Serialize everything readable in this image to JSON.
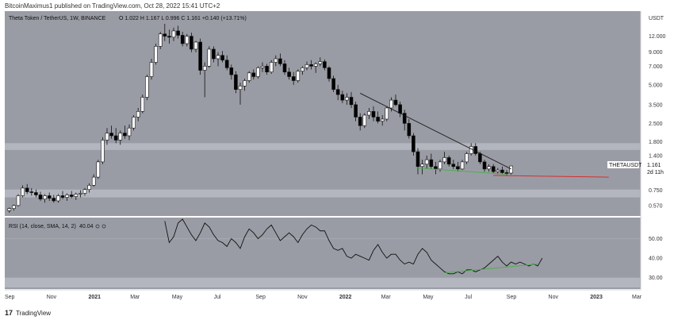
{
  "header": {
    "published_text": "BitcoinMaximus1 published on TradingView.com, Oct 28, 2022 15:41 UTC+2"
  },
  "footer": {
    "logo_glyph": "17",
    "brand": "TradingView"
  },
  "price_panel": {
    "legend_symbol": "Theta Token / TetherUS, 1W, BINANCE",
    "legend_ohlc": "O 1.022  H 1.167  L 0.996  C 1.161  +0.140 (+13.71%)",
    "unit_label": "USDT",
    "ticker_label": "THETAUSDT",
    "last_price_label": "1.161",
    "countdown_label": "2d 11h",
    "y_ticks": [
      "12.000",
      "9.000",
      "7.000",
      "5.000",
      "3.500",
      "2.500",
      "1.800",
      "1.400",
      "0.750",
      "0.570"
    ]
  },
  "rsi_panel": {
    "legend": "RSI (14, close, SMA, 14, 2)",
    "legend_value": "40.04",
    "y_ticks": [
      "50.00",
      "40.00",
      "30.00"
    ]
  },
  "x_axis": {
    "labels": [
      "Sep",
      "Nov",
      "2021",
      "Mar",
      "May",
      "Jul",
      "Sep",
      "Nov",
      "2022",
      "Mar",
      "May",
      "Jul",
      "Sep",
      "Nov",
      "2023",
      "Mar"
    ]
  },
  "chart_data": {
    "type": "candlestick",
    "title": "Theta Token / TetherUS, 1W, BINANCE",
    "y_scale": "log",
    "ylim": [
      0.5,
      15
    ],
    "support_zones": [
      [
        1.55,
        1.75
      ],
      [
        0.66,
        0.76
      ]
    ],
    "candles": [
      {
        "o": 0.52,
        "h": 0.55,
        "l": 0.5,
        "c": 0.54
      },
      {
        "o": 0.54,
        "h": 0.58,
        "l": 0.52,
        "c": 0.57
      },
      {
        "o": 0.57,
        "h": 0.7,
        "l": 0.56,
        "c": 0.68
      },
      {
        "o": 0.68,
        "h": 0.82,
        "l": 0.66,
        "c": 0.78
      },
      {
        "o": 0.78,
        "h": 0.84,
        "l": 0.7,
        "c": 0.73
      },
      {
        "o": 0.73,
        "h": 0.78,
        "l": 0.68,
        "c": 0.72
      },
      {
        "o": 0.72,
        "h": 0.76,
        "l": 0.66,
        "c": 0.69
      },
      {
        "o": 0.69,
        "h": 0.73,
        "l": 0.62,
        "c": 0.64
      },
      {
        "o": 0.64,
        "h": 0.7,
        "l": 0.6,
        "c": 0.68
      },
      {
        "o": 0.68,
        "h": 0.72,
        "l": 0.62,
        "c": 0.65
      },
      {
        "o": 0.65,
        "h": 0.69,
        "l": 0.6,
        "c": 0.62
      },
      {
        "o": 0.62,
        "h": 0.7,
        "l": 0.6,
        "c": 0.68
      },
      {
        "o": 0.68,
        "h": 0.74,
        "l": 0.64,
        "c": 0.66
      },
      {
        "o": 0.66,
        "h": 0.71,
        "l": 0.62,
        "c": 0.69
      },
      {
        "o": 0.69,
        "h": 0.74,
        "l": 0.65,
        "c": 0.67
      },
      {
        "o": 0.67,
        "h": 0.72,
        "l": 0.63,
        "c": 0.7
      },
      {
        "o": 0.7,
        "h": 0.75,
        "l": 0.66,
        "c": 0.71
      },
      {
        "o": 0.71,
        "h": 0.78,
        "l": 0.68,
        "c": 0.76
      },
      {
        "o": 0.76,
        "h": 0.85,
        "l": 0.72,
        "c": 0.82
      },
      {
        "o": 0.82,
        "h": 1.0,
        "l": 0.8,
        "c": 0.95
      },
      {
        "o": 0.95,
        "h": 1.3,
        "l": 0.92,
        "c": 1.25
      },
      {
        "o": 1.25,
        "h": 1.95,
        "l": 1.2,
        "c": 1.85
      },
      {
        "o": 1.85,
        "h": 2.3,
        "l": 1.7,
        "c": 2.1
      },
      {
        "o": 2.1,
        "h": 2.4,
        "l": 1.9,
        "c": 2.0
      },
      {
        "o": 2.0,
        "h": 2.3,
        "l": 1.75,
        "c": 1.85
      },
      {
        "o": 1.85,
        "h": 2.2,
        "l": 1.7,
        "c": 2.1
      },
      {
        "o": 2.1,
        "h": 2.4,
        "l": 1.9,
        "c": 2.0
      },
      {
        "o": 2.0,
        "h": 2.45,
        "l": 1.85,
        "c": 2.3
      },
      {
        "o": 2.3,
        "h": 2.9,
        "l": 2.2,
        "c": 2.8
      },
      {
        "o": 2.8,
        "h": 3.3,
        "l": 2.6,
        "c": 3.1
      },
      {
        "o": 3.1,
        "h": 4.2,
        "l": 3.0,
        "c": 4.0
      },
      {
        "o": 4.0,
        "h": 6.0,
        "l": 3.8,
        "c": 5.8
      },
      {
        "o": 5.8,
        "h": 8.0,
        "l": 5.5,
        "c": 7.5
      },
      {
        "o": 7.5,
        "h": 10.5,
        "l": 7.2,
        "c": 10.0
      },
      {
        "o": 10.0,
        "h": 13.0,
        "l": 9.5,
        "c": 12.5
      },
      {
        "o": 12.5,
        "h": 15.0,
        "l": 11.0,
        "c": 12.0
      },
      {
        "o": 12.0,
        "h": 13.5,
        "l": 10.5,
        "c": 11.8
      },
      {
        "o": 11.8,
        "h": 14.0,
        "l": 11.0,
        "c": 13.2
      },
      {
        "o": 13.2,
        "h": 14.5,
        "l": 11.5,
        "c": 12.2
      },
      {
        "o": 12.2,
        "h": 13.0,
        "l": 10.0,
        "c": 10.5
      },
      {
        "o": 10.5,
        "h": 12.5,
        "l": 10.0,
        "c": 12.0
      },
      {
        "o": 12.0,
        "h": 12.8,
        "l": 9.0,
        "c": 9.5
      },
      {
        "o": 9.5,
        "h": 11.0,
        "l": 9.0,
        "c": 10.8
      },
      {
        "o": 10.8,
        "h": 11.5,
        "l": 6.0,
        "c": 6.5
      },
      {
        "o": 6.5,
        "h": 7.5,
        "l": 4.0,
        "c": 7.0
      },
      {
        "o": 7.0,
        "h": 10.0,
        "l": 6.8,
        "c": 9.5
      },
      {
        "o": 9.5,
        "h": 10.0,
        "l": 7.5,
        "c": 8.0
      },
      {
        "o": 8.0,
        "h": 9.0,
        "l": 7.0,
        "c": 8.5
      },
      {
        "o": 8.5,
        "h": 9.2,
        "l": 7.5,
        "c": 7.8
      },
      {
        "o": 7.8,
        "h": 8.5,
        "l": 6.5,
        "c": 6.8
      },
      {
        "o": 6.8,
        "h": 7.2,
        "l": 5.5,
        "c": 6.0
      },
      {
        "o": 6.0,
        "h": 6.4,
        "l": 4.3,
        "c": 4.6
      },
      {
        "o": 4.6,
        "h": 5.2,
        "l": 3.5,
        "c": 4.9
      },
      {
        "o": 4.9,
        "h": 5.6,
        "l": 4.5,
        "c": 5.4
      },
      {
        "o": 5.4,
        "h": 6.4,
        "l": 5.2,
        "c": 6.2
      },
      {
        "o": 6.2,
        "h": 6.6,
        "l": 5.5,
        "c": 5.8
      },
      {
        "o": 5.8,
        "h": 7.0,
        "l": 5.6,
        "c": 6.8
      },
      {
        "o": 6.8,
        "h": 7.5,
        "l": 6.3,
        "c": 7.0
      },
      {
        "o": 7.0,
        "h": 7.3,
        "l": 6.0,
        "c": 6.3
      },
      {
        "o": 6.3,
        "h": 7.8,
        "l": 6.1,
        "c": 7.5
      },
      {
        "o": 7.5,
        "h": 8.5,
        "l": 7.0,
        "c": 8.0
      },
      {
        "o": 8.0,
        "h": 8.8,
        "l": 7.0,
        "c": 7.3
      },
      {
        "o": 7.3,
        "h": 7.8,
        "l": 6.0,
        "c": 6.3
      },
      {
        "o": 6.3,
        "h": 6.8,
        "l": 5.5,
        "c": 5.8
      },
      {
        "o": 5.8,
        "h": 6.3,
        "l": 5.0,
        "c": 5.4
      },
      {
        "o": 5.4,
        "h": 6.6,
        "l": 5.2,
        "c": 6.4
      },
      {
        "o": 6.4,
        "h": 7.0,
        "l": 6.0,
        "c": 6.8
      },
      {
        "o": 6.8,
        "h": 7.6,
        "l": 6.5,
        "c": 7.2
      },
      {
        "o": 7.2,
        "h": 7.8,
        "l": 6.6,
        "c": 7.0
      },
      {
        "o": 7.0,
        "h": 7.5,
        "l": 6.2,
        "c": 7.3
      },
      {
        "o": 7.3,
        "h": 8.2,
        "l": 7.0,
        "c": 7.6
      },
      {
        "o": 7.6,
        "h": 7.9,
        "l": 6.5,
        "c": 6.8
      },
      {
        "o": 6.8,
        "h": 7.0,
        "l": 5.3,
        "c": 5.6
      },
      {
        "o": 5.6,
        "h": 5.9,
        "l": 4.4,
        "c": 4.6
      },
      {
        "o": 4.6,
        "h": 5.0,
        "l": 3.8,
        "c": 4.2
      },
      {
        "o": 4.2,
        "h": 4.5,
        "l": 3.6,
        "c": 3.8
      },
      {
        "o": 3.8,
        "h": 4.3,
        "l": 3.5,
        "c": 4.0
      },
      {
        "o": 4.0,
        "h": 4.4,
        "l": 3.3,
        "c": 3.5
      },
      {
        "o": 3.5,
        "h": 3.7,
        "l": 2.6,
        "c": 2.8
      },
      {
        "o": 2.8,
        "h": 3.0,
        "l": 2.2,
        "c": 2.4
      },
      {
        "o": 2.4,
        "h": 3.0,
        "l": 2.3,
        "c": 2.9
      },
      {
        "o": 2.9,
        "h": 3.3,
        "l": 2.7,
        "c": 3.1
      },
      {
        "o": 3.1,
        "h": 3.4,
        "l": 2.6,
        "c": 2.8
      },
      {
        "o": 2.8,
        "h": 3.1,
        "l": 2.5,
        "c": 2.6
      },
      {
        "o": 2.6,
        "h": 2.9,
        "l": 2.4,
        "c": 2.7
      },
      {
        "o": 2.7,
        "h": 3.4,
        "l": 2.6,
        "c": 3.3
      },
      {
        "o": 3.3,
        "h": 4.0,
        "l": 3.1,
        "c": 3.8
      },
      {
        "o": 3.8,
        "h": 4.2,
        "l": 3.4,
        "c": 3.5
      },
      {
        "o": 3.5,
        "h": 3.7,
        "l": 2.8,
        "c": 3.0
      },
      {
        "o": 3.0,
        "h": 3.2,
        "l": 2.2,
        "c": 2.5
      },
      {
        "o": 2.5,
        "h": 2.7,
        "l": 1.9,
        "c": 2.0
      },
      {
        "o": 2.0,
        "h": 2.1,
        "l": 1.4,
        "c": 1.5
      },
      {
        "o": 1.5,
        "h": 1.6,
        "l": 1.0,
        "c": 1.15
      },
      {
        "o": 1.15,
        "h": 1.3,
        "l": 1.0,
        "c": 1.2
      },
      {
        "o": 1.2,
        "h": 1.4,
        "l": 1.1,
        "c": 1.3
      },
      {
        "o": 1.3,
        "h": 1.45,
        "l": 1.1,
        "c": 1.15
      },
      {
        "o": 1.15,
        "h": 1.25,
        "l": 1.0,
        "c": 1.1
      },
      {
        "o": 1.1,
        "h": 1.3,
        "l": 1.05,
        "c": 1.25
      },
      {
        "o": 1.25,
        "h": 1.5,
        "l": 1.2,
        "c": 1.35
      },
      {
        "o": 1.35,
        "h": 1.4,
        "l": 1.15,
        "c": 1.2
      },
      {
        "o": 1.2,
        "h": 1.3,
        "l": 1.1,
        "c": 1.15
      },
      {
        "o": 1.15,
        "h": 1.25,
        "l": 1.05,
        "c": 1.1
      },
      {
        "o": 1.1,
        "h": 1.3,
        "l": 1.08,
        "c": 1.25
      },
      {
        "o": 1.25,
        "h": 1.5,
        "l": 1.2,
        "c": 1.45
      },
      {
        "o": 1.45,
        "h": 1.75,
        "l": 1.4,
        "c": 1.65
      },
      {
        "o": 1.65,
        "h": 1.75,
        "l": 1.4,
        "c": 1.45
      },
      {
        "o": 1.45,
        "h": 1.5,
        "l": 1.2,
        "c": 1.25
      },
      {
        "o": 1.25,
        "h": 1.3,
        "l": 1.05,
        "c": 1.1
      },
      {
        "o": 1.1,
        "h": 1.2,
        "l": 1.05,
        "c": 1.15
      },
      {
        "o": 1.15,
        "h": 1.2,
        "l": 1.02,
        "c": 1.05
      },
      {
        "o": 1.05,
        "h": 1.12,
        "l": 1.0,
        "c": 1.08
      },
      {
        "o": 1.08,
        "h": 1.15,
        "l": 1.0,
        "c": 1.03
      },
      {
        "o": 1.03,
        "h": 1.08,
        "l": 0.98,
        "c": 1.02
      },
      {
        "o": 1.022,
        "h": 1.167,
        "l": 0.996,
        "c": 1.161
      }
    ],
    "price_trendline": [
      [
        79,
        4.3
      ],
      [
        113,
        1.1
      ]
    ],
    "green_support_line": [
      [
        92,
        1.12
      ],
      [
        112,
        1.0
      ]
    ],
    "red_support_line": [
      [
        109,
        0.98
      ],
      [
        135,
        0.95
      ]
    ],
    "rsi_ylim": [
      25,
      60
    ],
    "rsi_values": [
      [
        35,
        59
      ],
      [
        36,
        48
      ],
      [
        37,
        51
      ],
      [
        38,
        58
      ],
      [
        39,
        60
      ],
      [
        40,
        56
      ],
      [
        41,
        52
      ],
      [
        42,
        49
      ],
      [
        43,
        53
      ],
      [
        44,
        58
      ],
      [
        45,
        56
      ],
      [
        46,
        52
      ],
      [
        47,
        49
      ],
      [
        48,
        48
      ],
      [
        49,
        46
      ],
      [
        50,
        50
      ],
      [
        51,
        48
      ],
      [
        52,
        45
      ],
      [
        53,
        51
      ],
      [
        54,
        55
      ],
      [
        55,
        53
      ],
      [
        56,
        50
      ],
      [
        57,
        52
      ],
      [
        58,
        55
      ],
      [
        59,
        57
      ],
      [
        60,
        53
      ],
      [
        61,
        49
      ],
      [
        62,
        51
      ],
      [
        63,
        53
      ],
      [
        64,
        51
      ],
      [
        65,
        48
      ],
      [
        66,
        52
      ],
      [
        67,
        55
      ],
      [
        68,
        57
      ],
      [
        69,
        56
      ],
      [
        70,
        54
      ],
      [
        71,
        54
      ],
      [
        72,
        49
      ],
      [
        73,
        45
      ],
      [
        74,
        44
      ],
      [
        75,
        45
      ],
      [
        76,
        41
      ],
      [
        77,
        40
      ],
      [
        78,
        42
      ],
      [
        79,
        41
      ],
      [
        80,
        40
      ],
      [
        81,
        39
      ],
      [
        82,
        44
      ],
      [
        83,
        47
      ],
      [
        84,
        43
      ],
      [
        85,
        40
      ],
      [
        86,
        42
      ],
      [
        87,
        42
      ],
      [
        88,
        39
      ],
      [
        89,
        37
      ],
      [
        90,
        38
      ],
      [
        91,
        37
      ],
      [
        92,
        42
      ],
      [
        93,
        45
      ],
      [
        94,
        43
      ],
      [
        95,
        39
      ],
      [
        96,
        37
      ],
      [
        97,
        35
      ],
      [
        98,
        33
      ],
      [
        99,
        32
      ],
      [
        100,
        32
      ],
      [
        101,
        33
      ],
      [
        102,
        32
      ],
      [
        103,
        34
      ],
      [
        104,
        34
      ],
      [
        105,
        33
      ],
      [
        106,
        34
      ],
      [
        107,
        35
      ],
      [
        108,
        37
      ],
      [
        109,
        39
      ],
      [
        110,
        41
      ],
      [
        111,
        38
      ],
      [
        112,
        36
      ],
      [
        113,
        38
      ],
      [
        114,
        37
      ],
      [
        115,
        38
      ],
      [
        116,
        37
      ],
      [
        117,
        36
      ],
      [
        118,
        37
      ],
      [
        119,
        36
      ],
      [
        120,
        40
      ]
    ],
    "rsi_green_line": [
      [
        98,
        32.5
      ],
      [
        119,
        37
      ]
    ]
  },
  "colors": {
    "panel_bg": "#9a9ca5",
    "zone": "#b4b6bf",
    "candle_up": "#ffffff",
    "candle_down": "#000000",
    "trendline": "#1a1a1a",
    "green_line": "#4caf50",
    "red_line": "#d32f2f",
    "rsi_line": "#111111",
    "axis_bg": "#ffffff",
    "grid": "#a7a9b1"
  }
}
